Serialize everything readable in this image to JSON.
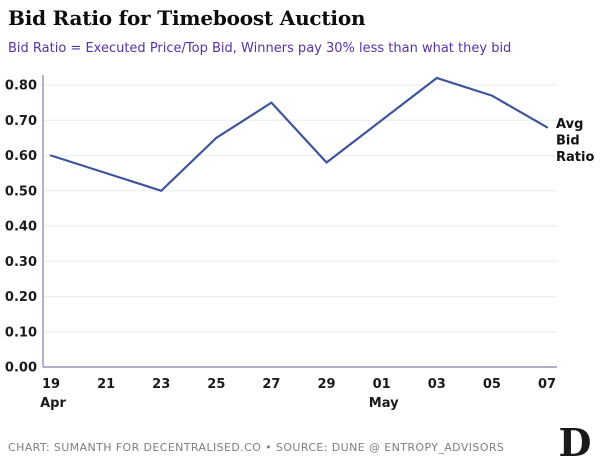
{
  "header": {
    "title": "Bid Ratio for Timeboost Auction",
    "subtitle": "Bid Ratio = Executed Price/Top Bid, Winners pay 30% less than what they bid"
  },
  "chart_data": {
    "type": "line",
    "title": "Bid Ratio for Timeboost Auction",
    "xlabel": "",
    "ylabel": "",
    "x_tick_labels": [
      "19",
      "21",
      "23",
      "25",
      "27",
      "29",
      "01",
      "03",
      "05",
      "07"
    ],
    "x_month_labels": [
      {
        "tick_index": 0,
        "label": "Apr"
      },
      {
        "tick_index": 6,
        "label": "May"
      }
    ],
    "y_tick_labels": [
      "0.00",
      "0.10",
      "0.20",
      "0.30",
      "0.40",
      "0.50",
      "0.60",
      "0.70",
      "0.80"
    ],
    "ylim": [
      0.0,
      0.82
    ],
    "grid": "horizontal",
    "series": [
      {
        "name": "Avg Bid Ratio",
        "values": [
          0.6,
          0.55,
          0.5,
          0.65,
          0.75,
          0.58,
          0.7,
          0.82,
          0.77,
          0.68
        ],
        "color": "#3e549b"
      }
    ],
    "annotation_lines": [
      "Avg",
      "Bid",
      "Ratio"
    ],
    "legend_position": "end-of-line-right",
    "axis_color": "#9c8fb5",
    "gridline_color": "#ebebf0"
  },
  "footer": {
    "credit": "CHART: SUMANTH FOR DECENTRALISED.CO • SOURCE: DUNE @ ENTROPY_ADVISORS",
    "logo_letter": "D"
  }
}
